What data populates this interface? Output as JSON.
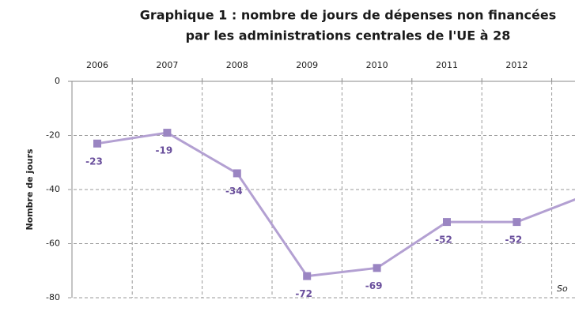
{
  "chart_data": {
    "type": "line",
    "title": [
      "Graphique 1 : nombre de jours de dépenses non financées",
      "par les administrations centrales de l'UE à 28"
    ],
    "y_label": "Nombre de jours",
    "categories": [
      "2006",
      "2007",
      "2008",
      "2009",
      "2010",
      "2011",
      "2012",
      null
    ],
    "series": [
      {
        "name": "Nombre de jours",
        "color": "#b3a0d2",
        "marker_color": "#9a85c2",
        "values": [
          -23,
          -19,
          -34,
          -72,
          -69,
          -52,
          -52,
          -42
        ]
      }
    ],
    "ylim": [
      -80,
      0
    ],
    "yticks": [
      0,
      -20,
      -40,
      -60,
      -80
    ],
    "grid": true,
    "annotation": "So"
  }
}
